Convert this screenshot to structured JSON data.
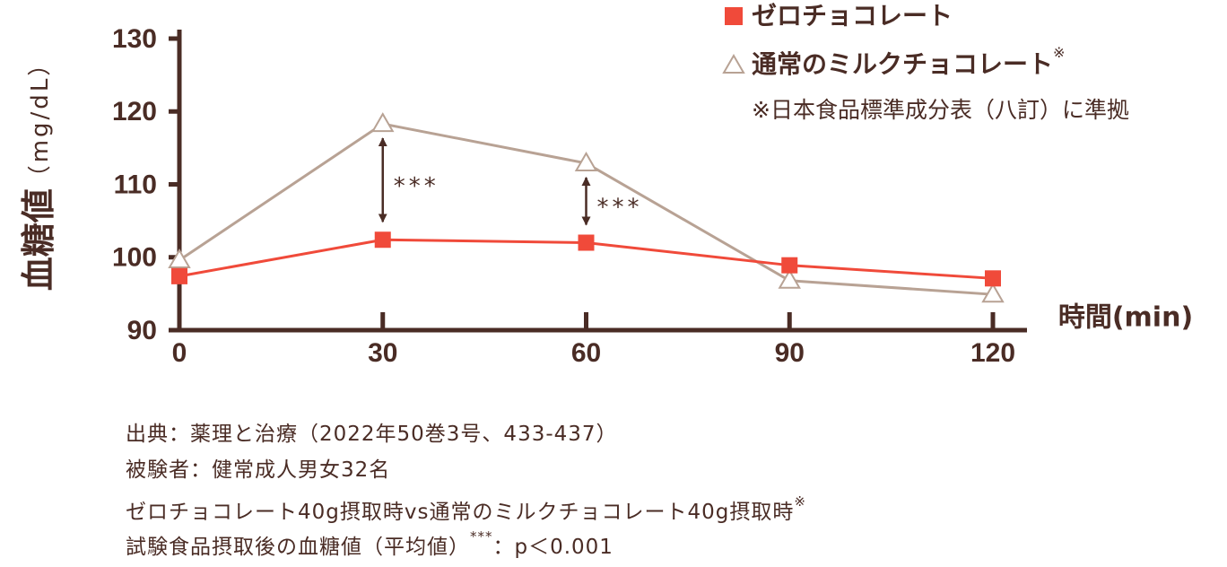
{
  "chart_data": {
    "type": "line",
    "x": [
      0,
      30,
      60,
      90,
      120
    ],
    "xlim": [
      0,
      120
    ],
    "xticks": [
      0,
      30,
      60,
      90,
      120
    ],
    "ylim": [
      90,
      130
    ],
    "yticks": [
      90,
      100,
      110,
      120,
      130
    ],
    "y_label": "血糖値",
    "y_label_unit": "（mg/dL）",
    "x_label": "時間(min)",
    "series": [
      {
        "name": "ゼロチョコレート",
        "color": "#f04a3a",
        "marker": "square",
        "values": [
          97.4,
          102.4,
          102.0,
          98.9,
          97.1
        ]
      },
      {
        "name": "通常のミルクチョコレート",
        "name_mark": "※",
        "color": "#b8a294",
        "marker": "triangle",
        "values": [
          99.6,
          118.3,
          112.9,
          96.8,
          94.9
        ]
      }
    ],
    "legend": "top-right",
    "legend_note": "※日本食品標準成分表（八訂）に準拠",
    "annotations": [
      {
        "x": 30,
        "text": "***"
      },
      {
        "x": 60,
        "text": "***"
      }
    ],
    "notes": [
      {
        "text": "出典：薬理と治療（2022年50巻3号、433-437）"
      },
      {
        "text": "被験者：健常成人男女32名"
      },
      {
        "text": "ゼロチョコレート40g摂取時vs通常のミルクチョコレート40g摂取時",
        "sup": "※"
      },
      {
        "text": "試験食品摂取後の血糖値（平均値）",
        "sup": "***",
        "rest": "：p＜0.001"
      }
    ]
  }
}
